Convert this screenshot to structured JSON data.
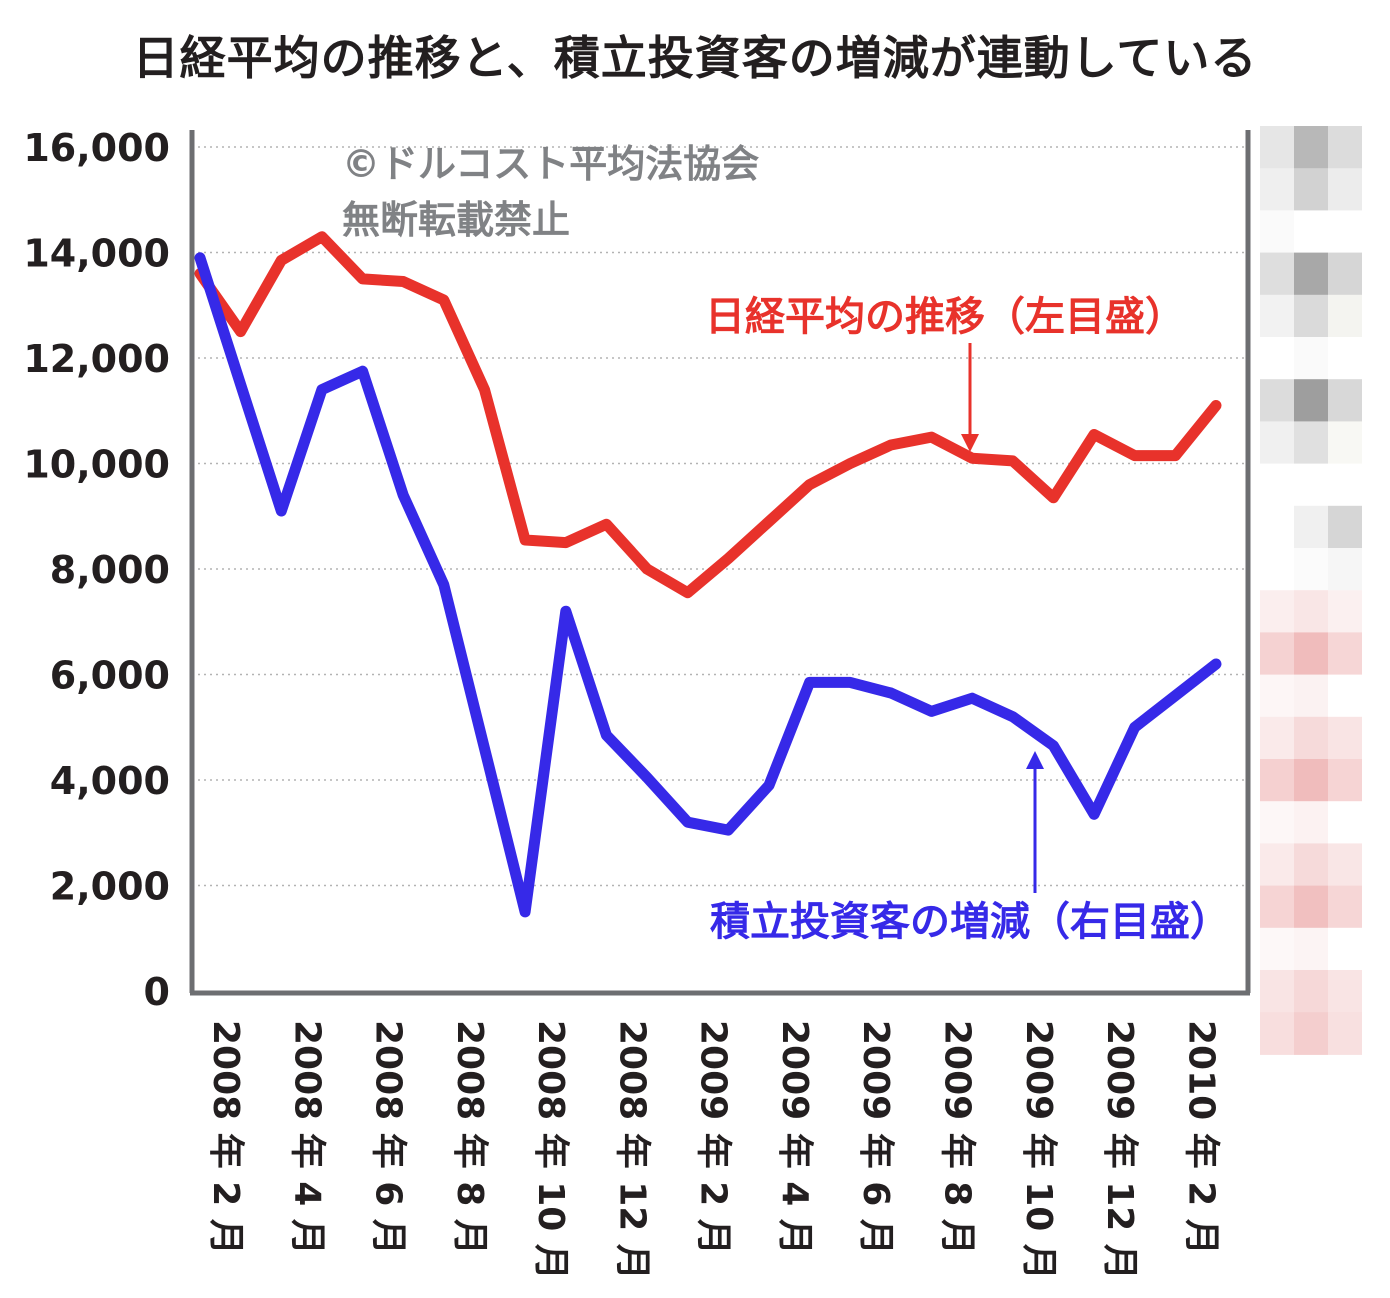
{
  "chart_data": {
    "type": "line",
    "title": "日経平均の推移と、積立投資客の増減が連動している",
    "watermark": [
      "©ドルコスト平均法協会",
      "無断転載禁止"
    ],
    "x_tick_labels": [
      "2008 年 2 月",
      "2008 年 4 月",
      "2008 年 6 月",
      "2008 年 8 月",
      "2008 年 10 月",
      "2008 年 12 月",
      "2009 年 2 月",
      "2009 年 4 月",
      "2009 年 6 月",
      "2009 年 8 月",
      "2009 年 10 月",
      "2009 年 12 月",
      "2010 年 2 月"
    ],
    "y_ticks": [
      0,
      2000,
      4000,
      6000,
      8000,
      10000,
      12000,
      14000,
      16000
    ],
    "y_tick_labels": [
      "0",
      "2,000",
      "4,000",
      "6,000",
      "8,000",
      "10,000",
      "12,000",
      "14,000",
      "16,000"
    ],
    "ylim": [
      0,
      16000
    ],
    "grid": "horizontal dotted",
    "x_points": 26,
    "series": [
      {
        "name": "日経平均の推移（左目盛）",
        "color": "#e8322b",
        "label_position": "upper-right",
        "values": [
          13600,
          12500,
          13850,
          14300,
          13500,
          13450,
          13100,
          11400,
          8550,
          8500,
          8850,
          8000,
          7550,
          8200,
          8900,
          9600,
          10000,
          10350,
          10500,
          10100,
          10050,
          9350,
          10550,
          10150,
          10150,
          11100
        ]
      },
      {
        "name": "積立投資客の増減（右目盛）",
        "color": "#3629e8",
        "label_position": "lower-right",
        "values": [
          13900,
          11500,
          9100,
          11400,
          11750,
          9400,
          7700,
          4600,
          1500,
          7200,
          4850,
          4050,
          3200,
          3050,
          3900,
          5850,
          5850,
          5650,
          5300,
          5550,
          5200,
          4650,
          3350,
          5000,
          5600,
          6200
        ]
      }
    ]
  }
}
